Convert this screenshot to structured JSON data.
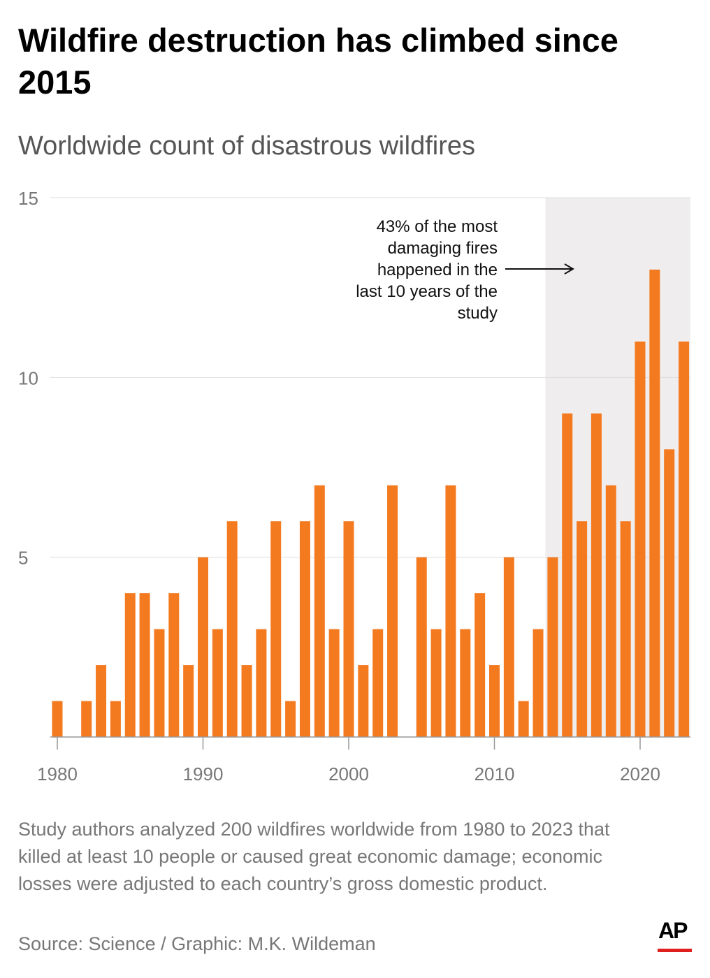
{
  "title": "Wildfire destruction has climbed since 2015",
  "subtitle": "Worldwide count of disastrous wildfires",
  "note": "Study authors analyzed 200 wildfires worldwide from 1980 to 2023 that killed at least 10 people or caused great economic damage; economic losses were adjusted to each country’s gross domestic product.",
  "source": "Source: Science / Graphic: M.K. Wildeman",
  "logo": "AP",
  "colors": {
    "bar": "#f47a20",
    "shade": "#efeded",
    "logo_red": "#e0201e"
  },
  "chart_data": {
    "type": "bar",
    "title": "Worldwide count of disastrous wildfires",
    "xlabel": "",
    "ylabel": "",
    "ylim": [
      0,
      15
    ],
    "yticks": [
      5,
      10,
      15
    ],
    "xticks": [
      1980,
      1990,
      2000,
      2010,
      2020
    ],
    "categories": [
      1980,
      1981,
      1982,
      1983,
      1984,
      1985,
      1986,
      1987,
      1988,
      1989,
      1990,
      1991,
      1992,
      1993,
      1994,
      1995,
      1996,
      1997,
      1998,
      1999,
      2000,
      2001,
      2002,
      2003,
      2004,
      2005,
      2006,
      2007,
      2008,
      2009,
      2010,
      2011,
      2012,
      2013,
      2014,
      2015,
      2016,
      2017,
      2018,
      2019,
      2020,
      2021,
      2022,
      2023
    ],
    "values": [
      1,
      0,
      1,
      2,
      1,
      4,
      4,
      3,
      4,
      2,
      5,
      3,
      6,
      2,
      3,
      6,
      1,
      6,
      7,
      3,
      6,
      2,
      3,
      7,
      0,
      5,
      3,
      7,
      3,
      4,
      2,
      5,
      1,
      3,
      5,
      9,
      6,
      9,
      7,
      6,
      11,
      13,
      8,
      11
    ],
    "highlight_range": [
      2014,
      2023
    ],
    "annotation": [
      "43% of the most",
      "damaging fires",
      "happened in the",
      "last 10 years of the",
      "study"
    ],
    "grid": true
  }
}
